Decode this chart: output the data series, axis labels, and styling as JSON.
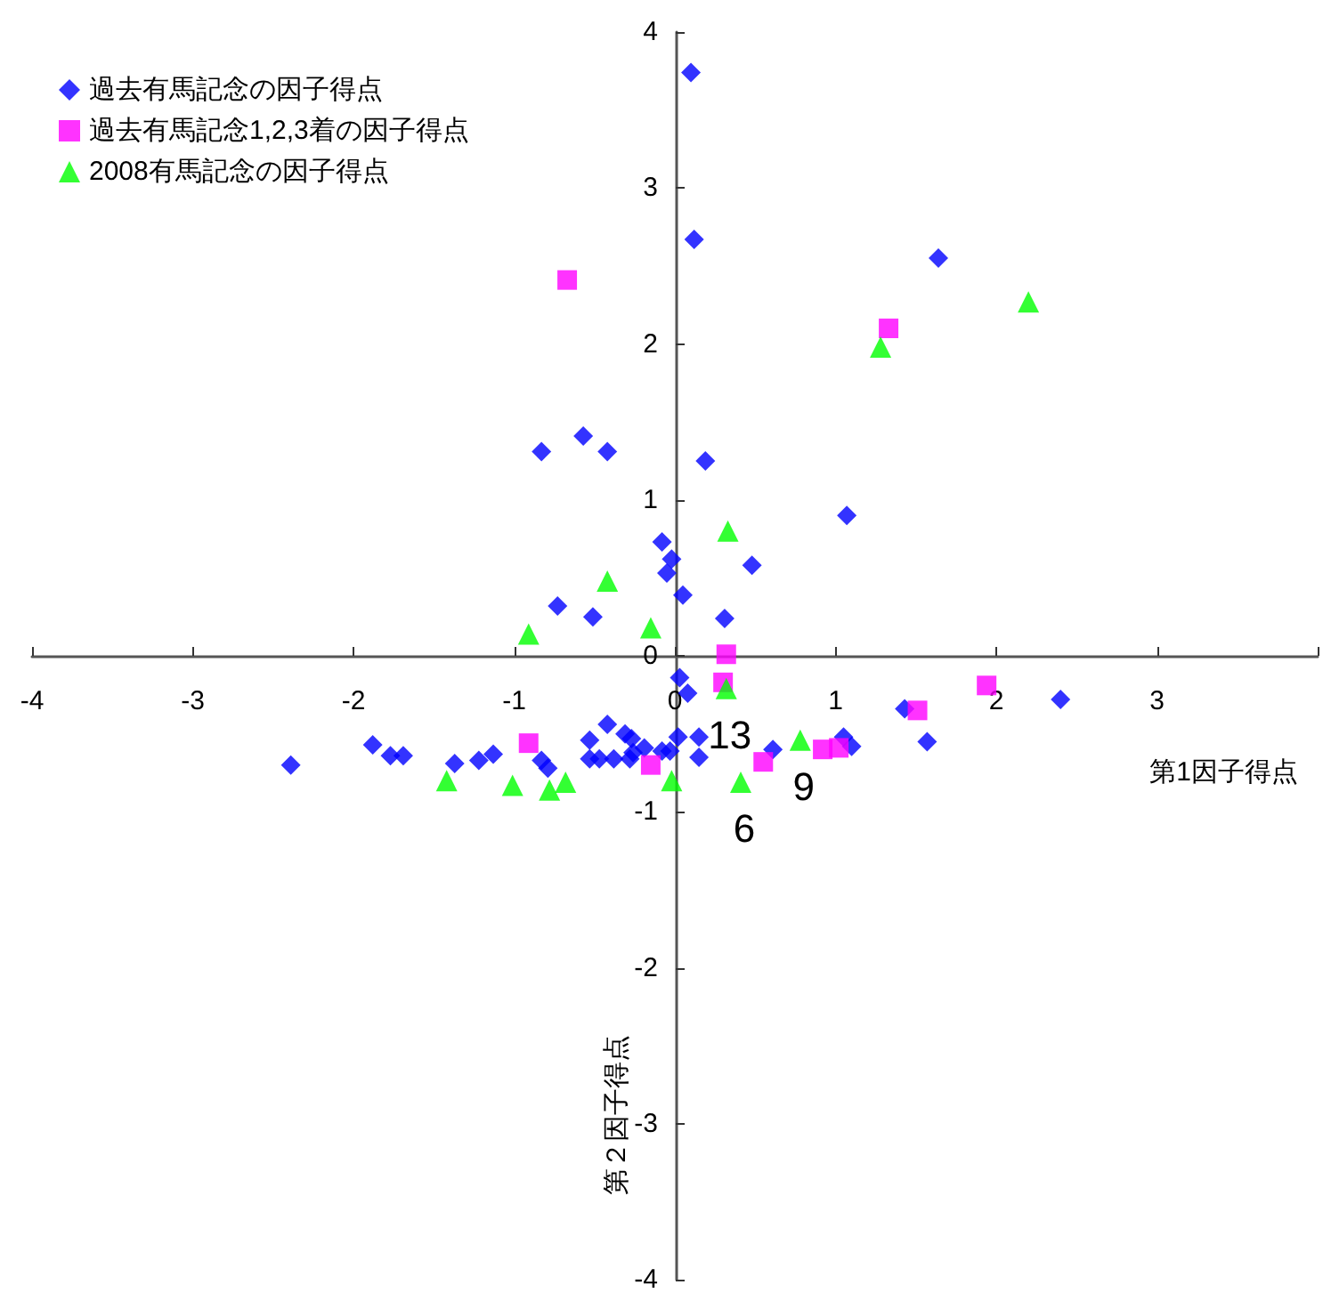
{
  "chart_data": {
    "type": "scatter",
    "xlabel": "第1因子得点",
    "ylabel": "第２因子得点",
    "xlim": [
      -4,
      4
    ],
    "ylim": [
      -4,
      4
    ],
    "xticks": [
      -4,
      -3,
      -2,
      -1,
      0,
      1,
      2,
      3,
      {
        "value": 4,
        "label": null
      }
    ],
    "yticks": [
      -4,
      -3,
      -2,
      -1,
      0,
      1,
      2,
      3,
      4
    ],
    "legend": "top left",
    "annotations": [
      {
        "text": "13",
        "x": 0.32,
        "y": -0.21
      },
      {
        "text": "6",
        "x": 0.41,
        "y": -0.81
      },
      {
        "text": "9",
        "x": 0.78,
        "y": -0.54
      }
    ],
    "series": [
      {
        "name": "過去有馬記念の因子得点",
        "color": "#0000ff",
        "marker": "diamond",
        "x": [
          -2.39,
          -1.88,
          -1.77,
          -1.69,
          -1.37,
          -1.22,
          -1.13,
          -0.83,
          -0.83,
          -0.79,
          -0.73,
          -0.57,
          -0.51,
          -0.53,
          -0.53,
          -0.47,
          -0.42,
          -0.42,
          -0.38,
          -0.31,
          -0.27,
          -0.28,
          -0.26,
          -0.19,
          -0.08,
          -0.05,
          -0.02,
          -0.08,
          -0.03,
          0.05,
          0.03,
          0.08,
          0.1,
          0.12,
          0.19,
          0.02,
          0.15,
          0.15,
          0.31,
          0.48,
          0.61,
          1.07,
          1.05,
          1.1,
          1.43,
          1.57,
          1.64,
          2.4
        ],
        "values": [
          -0.7,
          -0.57,
          -0.64,
          -0.64,
          -0.69,
          -0.67,
          -0.63,
          1.31,
          -0.67,
          -0.72,
          0.32,
          1.41,
          0.25,
          -0.54,
          -0.66,
          -0.66,
          1.31,
          -0.44,
          -0.66,
          -0.5,
          -0.53,
          -0.66,
          -0.62,
          -0.59,
          0.73,
          0.53,
          0.62,
          -0.61,
          -0.61,
          0.39,
          -0.14,
          -0.24,
          3.74,
          2.67,
          1.25,
          -0.52,
          -0.52,
          -0.65,
          0.24,
          0.58,
          -0.6,
          0.9,
          -0.52,
          -0.58,
          -0.34,
          -0.55,
          2.55,
          -0.28
        ]
      },
      {
        "name": "過去有馬記念1,2,3着の因子得点",
        "color": "#ff00ff",
        "marker": "square",
        "x": [
          -0.67,
          -0.91,
          -0.15,
          0.32,
          0.3,
          0.55,
          0.92,
          1.02,
          1.33,
          1.51,
          1.94
        ],
        "values": [
          2.41,
          -0.56,
          -0.7,
          0.01,
          -0.17,
          -0.68,
          -0.6,
          -0.59,
          2.1,
          -0.35,
          -0.19
        ]
      },
      {
        "name": "2008有馬記念の因子得点",
        "color": "#00ff00",
        "marker": "triangle",
        "x": [
          -1.42,
          -1.01,
          -0.78,
          -0.68,
          -0.91,
          -0.42,
          -0.15,
          -0.02,
          0.33,
          0.32,
          0.41,
          0.78,
          1.28,
          2.2
        ],
        "values": [
          -0.8,
          -0.83,
          -0.86,
          -0.81,
          0.14,
          0.48,
          0.18,
          -0.8,
          0.8,
          -0.21,
          -0.81,
          -0.54,
          1.98,
          2.27
        ]
      }
    ]
  }
}
